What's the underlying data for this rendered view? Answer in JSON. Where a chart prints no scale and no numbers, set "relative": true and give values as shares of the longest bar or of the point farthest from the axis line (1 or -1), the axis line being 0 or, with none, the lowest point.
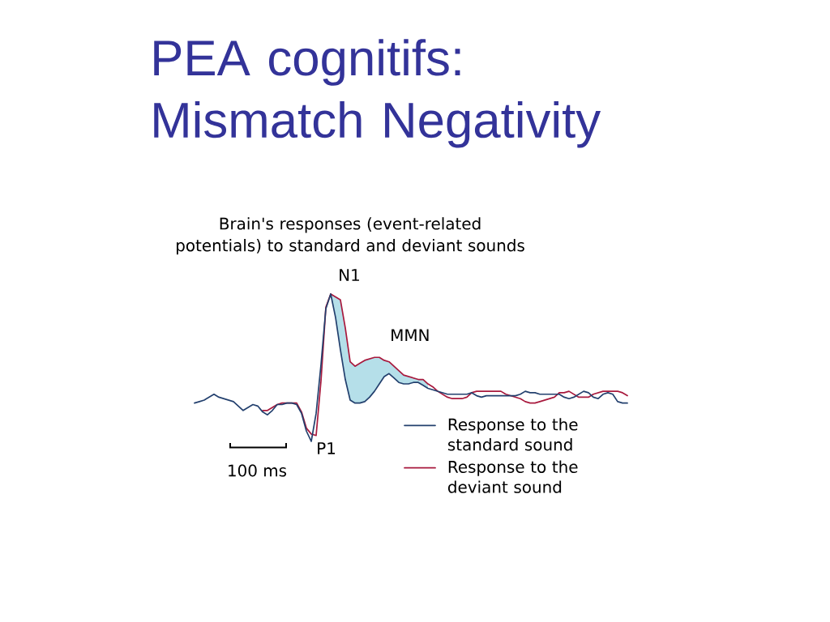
{
  "chart_data": {
    "type": "line",
    "relative": true,
    "title": "PEA cognitifs: Mismatch Negativity",
    "subtitle": "Brain's responses (event-related potentials) to standard and deviant sounds",
    "categories": [
      null,
      null,
      null,
      null,
      null,
      null,
      null,
      null,
      null,
      null,
      null,
      null,
      null,
      null,
      null,
      null,
      null,
      null,
      null,
      null,
      null,
      null,
      null,
      null,
      null,
      null,
      null,
      null,
      null,
      null,
      null,
      null,
      null,
      null,
      null,
      null,
      null,
      null,
      null,
      null,
      null,
      null,
      null,
      null,
      null,
      null,
      null,
      null,
      null,
      null,
      null,
      null,
      null,
      null,
      null,
      null,
      null,
      null,
      null,
      null,
      null,
      null,
      null,
      null,
      null,
      null,
      null,
      null,
      null,
      null,
      null,
      null,
      null,
      null,
      null,
      null,
      null,
      null,
      null,
      null,
      null,
      null,
      null,
      null,
      null,
      null,
      null,
      null,
      null,
      null
    ],
    "series": [
      {
        "name": "Response to the standard sound",
        "color": "#23406e",
        "values": [
          0.26,
          0.27,
          0.28,
          0.3,
          0.32,
          0.3,
          0.29,
          0.28,
          0.27,
          0.24,
          0.21,
          0.23,
          0.25,
          0.24,
          0.2,
          0.18,
          0.21,
          0.25,
          0.25,
          0.26,
          0.26,
          0.25,
          0.19,
          0.07,
          0.0,
          0.19,
          0.52,
          0.9,
          1.0,
          0.84,
          0.62,
          0.42,
          0.28,
          0.26,
          0.26,
          0.27,
          0.3,
          0.34,
          0.39,
          0.44,
          0.46,
          0.43,
          0.4,
          0.39,
          0.39,
          0.4,
          0.4,
          0.38,
          0.36,
          0.35,
          0.34,
          0.33,
          0.32,
          0.32,
          0.32,
          0.32,
          0.32,
          0.33,
          0.31,
          0.3,
          0.31,
          0.31,
          0.31,
          0.31,
          0.31,
          0.31,
          0.31,
          0.32,
          0.34,
          0.33,
          0.33,
          0.32,
          0.32,
          0.32,
          0.32,
          0.32,
          0.3,
          0.29,
          0.3,
          0.32,
          0.34,
          0.33,
          0.3,
          0.29,
          0.32,
          0.33,
          0.32,
          0.27,
          0.26,
          0.26
        ]
      },
      {
        "name": "Response to the deviant sound",
        "color": "#a8193d",
        "values": [
          null,
          null,
          null,
          null,
          null,
          null,
          null,
          null,
          null,
          null,
          null,
          null,
          null,
          null,
          0.21,
          0.21,
          0.23,
          0.25,
          0.26,
          0.26,
          0.26,
          0.26,
          0.2,
          0.09,
          0.05,
          0.04,
          0.41,
          0.91,
          1.0,
          0.98,
          0.96,
          0.77,
          0.54,
          0.51,
          0.53,
          0.55,
          0.56,
          0.57,
          0.57,
          0.55,
          0.54,
          0.51,
          0.48,
          0.45,
          0.44,
          0.43,
          0.42,
          0.42,
          0.39,
          0.37,
          0.34,
          0.32,
          0.3,
          0.29,
          0.29,
          0.29,
          0.3,
          0.33,
          0.34,
          0.34,
          0.34,
          0.34,
          0.34,
          0.34,
          0.32,
          0.31,
          0.3,
          0.29,
          0.27,
          0.26,
          0.26,
          0.27,
          0.28,
          0.29,
          0.3,
          0.33,
          0.33,
          0.34,
          0.32,
          0.3,
          0.3,
          0.3,
          0.32,
          0.33,
          0.34,
          0.34,
          0.34,
          0.34,
          0.33,
          0.31
        ],
        "upper": [
          null,
          null,
          null,
          null,
          null,
          null,
          null,
          null,
          null,
          null,
          null,
          null,
          null,
          null,
          null,
          null,
          null,
          null,
          null,
          null,
          null,
          null,
          null,
          null,
          null,
          null,
          null,
          null,
          1.0,
          0.98,
          0.96,
          0.77,
          0.54,
          0.51,
          0.53,
          0.55,
          0.56,
          0.57,
          0.57,
          0.55,
          0.54,
          0.51,
          0.48,
          0.45,
          0.44,
          0.43,
          0.42,
          0.42,
          0.39,
          null,
          null,
          null,
          null,
          null,
          null,
          null,
          null,
          null,
          null,
          null,
          null,
          null,
          null,
          null,
          null,
          null,
          null,
          null,
          null,
          null,
          null,
          null,
          null,
          null,
          null,
          null,
          null,
          null,
          null,
          null,
          null,
          null,
          null,
          null,
          null,
          null,
          null,
          null,
          null,
          null
        ],
        "lower": [
          null,
          null,
          null,
          null,
          null,
          null,
          null,
          null,
          null,
          null,
          null,
          null,
          null,
          null,
          null,
          null,
          null,
          null,
          null,
          null,
          null,
          null,
          null,
          null,
          null,
          null,
          null,
          null,
          1.0,
          0.84,
          0.62,
          0.42,
          0.28,
          0.26,
          0.26,
          0.27,
          0.3,
          0.34,
          0.39,
          0.44,
          0.46,
          0.43,
          0.4,
          0.39,
          0.39,
          0.4,
          0.4,
          0.38,
          0.36,
          null,
          null,
          null,
          null,
          null,
          null,
          null,
          null,
          null,
          null,
          null,
          null,
          null,
          null,
          null,
          null,
          null,
          null,
          null,
          null,
          null,
          null,
          null,
          null,
          null,
          null,
          null,
          null,
          null,
          null,
          null,
          null,
          null,
          null,
          null,
          null,
          null,
          null,
          null,
          null,
          null
        ]
      }
    ],
    "annotations": [
      "N1",
      "MMN",
      "P1",
      "100 ms"
    ],
    "legend": "bottom right",
    "tick_labels": false
  }
}
